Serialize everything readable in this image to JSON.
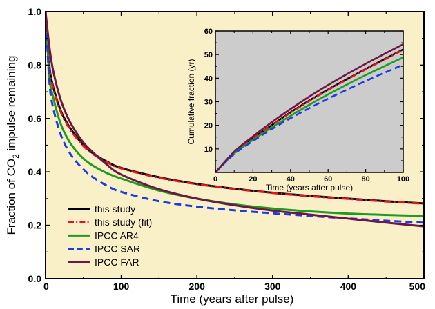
{
  "chart_data": [
    {
      "id": "main",
      "type": "line",
      "title": "",
      "xlabel": "Time (years after pulse)",
      "ylabel_parts": [
        "Fraction of CO",
        "2",
        " impulse remaining"
      ],
      "xlim": [
        0,
        500
      ],
      "ylim": [
        0,
        1.0
      ],
      "xticks": [
        0,
        100,
        200,
        300,
        400,
        500
      ],
      "yticks": [
        0.0,
        0.2,
        0.4,
        0.6,
        0.8,
        1.0
      ],
      "ytick_labels": [
        "0.0",
        "0.2",
        "0.4",
        "0.6",
        "0.8",
        "1.0"
      ],
      "background": "#FAF0C8",
      "grid": false,
      "legend_position": "bottom-left",
      "series": [
        {
          "name": "this study",
          "color": "#000000",
          "dash": "solid",
          "x": [
            0,
            5,
            10,
            20,
            30,
            40,
            50,
            60,
            80,
            100,
            150,
            200,
            250,
            300,
            350,
            400,
            450,
            500
          ],
          "y": [
            1.0,
            0.8,
            0.72,
            0.63,
            0.575,
            0.535,
            0.5,
            0.475,
            0.44,
            0.415,
            0.38,
            0.355,
            0.337,
            0.322,
            0.31,
            0.3,
            0.29,
            0.282
          ]
        },
        {
          "name": "this study (fit)",
          "color": "#E8141C",
          "dash": "dashdot",
          "x": [
            0,
            5,
            10,
            20,
            30,
            40,
            50,
            60,
            80,
            100,
            150,
            200,
            250,
            300,
            350,
            400,
            450,
            500
          ],
          "y": [
            1.0,
            0.79,
            0.715,
            0.625,
            0.57,
            0.53,
            0.497,
            0.472,
            0.438,
            0.413,
            0.378,
            0.354,
            0.336,
            0.321,
            0.309,
            0.299,
            0.289,
            0.281
          ]
        },
        {
          "name": "IPCC AR4",
          "color": "#1E9C1E",
          "dash": "solid",
          "x": [
            0,
            5,
            10,
            20,
            30,
            40,
            50,
            60,
            80,
            100,
            150,
            200,
            250,
            300,
            350,
            400,
            450,
            500
          ],
          "y": [
            1.0,
            0.76,
            0.68,
            0.58,
            0.52,
            0.48,
            0.45,
            0.428,
            0.397,
            0.375,
            0.33,
            0.3,
            0.278,
            0.263,
            0.252,
            0.244,
            0.239,
            0.235
          ]
        },
        {
          "name": "IPCC SAR",
          "color": "#1A3CE6",
          "dash": "dash",
          "x": [
            0,
            5,
            10,
            20,
            30,
            40,
            50,
            60,
            80,
            100,
            150,
            200,
            250,
            300,
            350,
            400,
            450,
            500
          ],
          "y": [
            1.0,
            0.74,
            0.64,
            0.54,
            0.48,
            0.44,
            0.41,
            0.385,
            0.35,
            0.325,
            0.29,
            0.27,
            0.256,
            0.245,
            0.235,
            0.226,
            0.217,
            0.21
          ]
        },
        {
          "name": "IPCC FAR",
          "color": "#6B1747",
          "dash": "solid",
          "x": [
            0,
            5,
            10,
            20,
            30,
            40,
            50,
            60,
            80,
            100,
            150,
            200,
            250,
            300,
            350,
            400,
            450,
            500
          ],
          "y": [
            1.0,
            0.87,
            0.78,
            0.67,
            0.6,
            0.55,
            0.51,
            0.48,
            0.43,
            0.39,
            0.335,
            0.3,
            0.275,
            0.255,
            0.24,
            0.225,
            0.21,
            0.196
          ]
        }
      ]
    },
    {
      "id": "inset",
      "type": "line",
      "title": "",
      "xlabel": "Time (years after pulse)",
      "ylabel": "Cumulative fraction (yr)",
      "xlim": [
        0,
        100
      ],
      "ylim": [
        0,
        60
      ],
      "xticks": [
        0,
        20,
        40,
        60,
        80,
        100
      ],
      "yticks": [
        10,
        20,
        30,
        40,
        50,
        60
      ],
      "background": "#CCCCCC",
      "grid": false,
      "series": [
        {
          "name": "this study",
          "color": "#000000",
          "dash": "solid",
          "x": [
            0,
            10,
            20,
            30,
            40,
            50,
            60,
            70,
            80,
            90,
            100
          ],
          "y": [
            0,
            8.4,
            14.5,
            20.1,
            25.5,
            30.5,
            35.2,
            39.6,
            43.9,
            48.1,
            52.2
          ]
        },
        {
          "name": "this study (fit)",
          "color": "#E8141C",
          "dash": "dashdot",
          "x": [
            0,
            10,
            20,
            30,
            40,
            50,
            60,
            70,
            80,
            90,
            100
          ],
          "y": [
            0,
            8.3,
            14.4,
            20.0,
            25.3,
            30.3,
            35.0,
            39.4,
            43.7,
            47.9,
            52.0
          ]
        },
        {
          "name": "IPCC AR4",
          "color": "#1E9C1E",
          "dash": "solid",
          "x": [
            0,
            10,
            20,
            30,
            40,
            50,
            60,
            70,
            80,
            90,
            100
          ],
          "y": [
            0,
            8.0,
            13.8,
            19.1,
            24.0,
            28.7,
            33.1,
            37.3,
            41.3,
            45.1,
            48.8
          ]
        },
        {
          "name": "IPCC SAR",
          "color": "#1A3CE6",
          "dash": "dash",
          "x": [
            0,
            10,
            20,
            30,
            40,
            50,
            60,
            70,
            80,
            90,
            100
          ],
          "y": [
            0,
            7.8,
            13.3,
            18.4,
            23.0,
            27.3,
            31.3,
            35.1,
            38.8,
            42.3,
            45.7
          ]
        },
        {
          "name": "IPCC FAR",
          "color": "#6B1747",
          "dash": "solid",
          "x": [
            0,
            10,
            20,
            30,
            40,
            50,
            60,
            70,
            80,
            90,
            100
          ],
          "y": [
            0,
            8.8,
            15.3,
            21.3,
            26.9,
            32.2,
            37.1,
            41.7,
            46.1,
            50.3,
            54.4
          ]
        }
      ]
    }
  ]
}
